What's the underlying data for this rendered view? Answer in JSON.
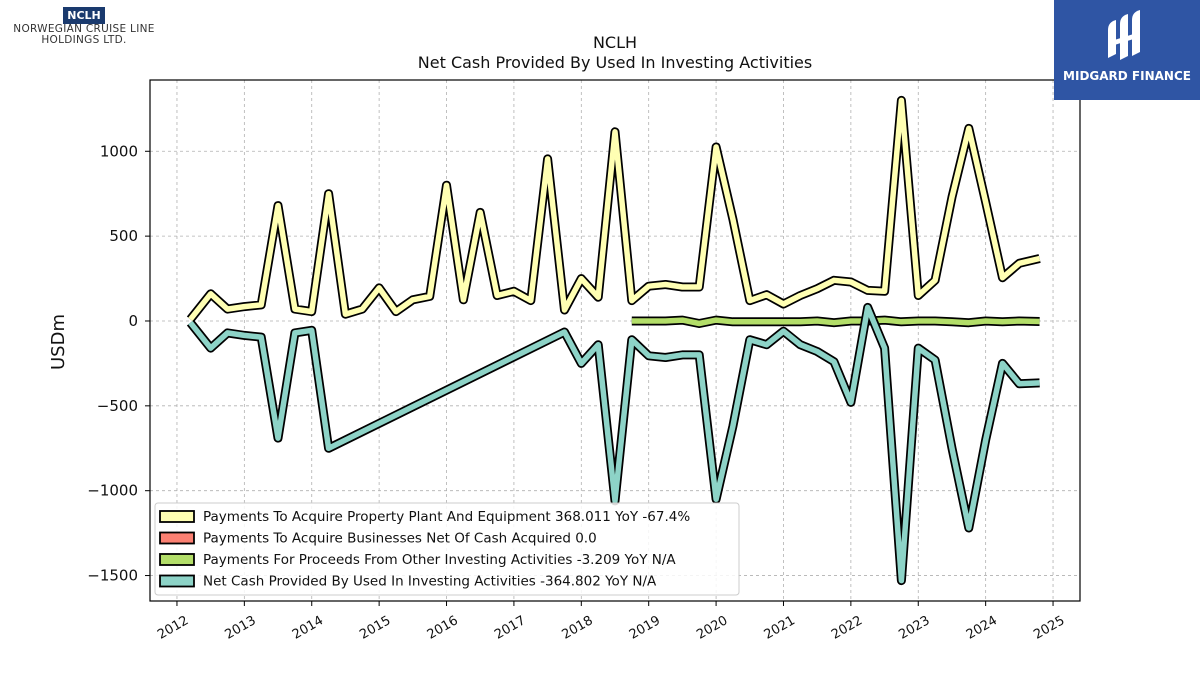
{
  "logos": {
    "company": {
      "badge": "NCLH",
      "line1": "NORWEGIAN CRUISE LINE",
      "line2": "HOLDINGS LTD."
    },
    "publisher": {
      "name": "MIDGARD FINANCE"
    }
  },
  "chart_data": {
    "type": "line",
    "title": "NCLH",
    "subtitle": "Net Cash Provided By Used In Investing Activities",
    "ylabel": "USDm",
    "xlabel": "",
    "xlim": [
      2011.6,
      2025.4
    ],
    "ylim": [
      -1650,
      1420
    ],
    "xticks": [
      2012,
      2013,
      2014,
      2015,
      2016,
      2017,
      2018,
      2019,
      2020,
      2021,
      2022,
      2023,
      2024,
      2025
    ],
    "xtick_labels": [
      "2012",
      "2013",
      "2014",
      "2015",
      "2016",
      "2017",
      "2018",
      "2019",
      "2020",
      "2021",
      "2022",
      "2023",
      "2024",
      "2025"
    ],
    "yticks": [
      1000,
      500,
      0,
      -500,
      -1000,
      -1500
    ],
    "ytick_labels": [
      "1000",
      "500",
      "0",
      "−500",
      "−1000",
      "−1500"
    ],
    "grid": true,
    "legend_position": "lower-left",
    "series": [
      {
        "name": "Payments To Acquire Property Plant And Equipment",
        "legend": "Payments To Acquire Property Plant And Equipment  368.011 YoY -67.4%",
        "color": "#ffffb3",
        "x": [
          2012.2,
          2012.5,
          2012.75,
          2013.0,
          2013.25,
          2013.5,
          2013.75,
          2014.0,
          2014.25,
          2014.5,
          2014.75,
          2015.0,
          2015.25,
          2015.5,
          2015.75,
          2016.0,
          2016.25,
          2016.5,
          2016.75,
          2017.0,
          2017.25,
          2017.5,
          2017.75,
          2018.0,
          2018.25,
          2018.5,
          2018.75,
          2019.0,
          2019.25,
          2019.5,
          2019.75,
          2020.0,
          2020.25,
          2020.5,
          2020.75,
          2021.0,
          2021.25,
          2021.5,
          2021.75,
          2022.0,
          2022.25,
          2022.5,
          2022.75,
          2023.0,
          2023.25,
          2023.5,
          2023.75,
          2024.0,
          2024.25,
          2024.5,
          2024.8
        ],
        "y": [
          10,
          160,
          70,
          85,
          95,
          680,
          70,
          55,
          750,
          40,
          70,
          195,
          55,
          125,
          145,
          800,
          125,
          640,
          150,
          175,
          120,
          955,
          65,
          250,
          140,
          1115,
          120,
          205,
          215,
          200,
          200,
          1025,
          600,
          120,
          155,
          100,
          150,
          190,
          240,
          230,
          180,
          175,
          1300,
          150,
          240,
          730,
          1135,
          700,
          255,
          340,
          368.011
        ]
      },
      {
        "name": "Payments To Acquire Businesses Net Of Cash Acquired",
        "legend": "Payments To Acquire Businesses Net Of Cash Acquired  0.0",
        "color": "#fb8072",
        "x": [],
        "y": []
      },
      {
        "name": "Payments For Proceeds From Other Investing Activities",
        "legend": "Payments For Proceeds From Other Investing Activities  -3.209 YoY N/A",
        "color": "#b3de69",
        "x": [
          2018.75,
          2019.0,
          2019.25,
          2019.5,
          2019.75,
          2020.0,
          2020.25,
          2020.5,
          2020.75,
          2021.0,
          2021.25,
          2021.5,
          2021.75,
          2022.0,
          2022.25,
          2022.5,
          2022.75,
          2023.0,
          2023.25,
          2023.5,
          2023.75,
          2024.0,
          2024.25,
          2024.5,
          2024.8
        ],
        "y": [
          0,
          0,
          0,
          5,
          -15,
          5,
          -5,
          -5,
          -5,
          -5,
          -5,
          0,
          -10,
          0,
          0,
          5,
          -5,
          0,
          0,
          -5,
          -10,
          0,
          -5,
          0,
          -3.209
        ]
      },
      {
        "name": "Net Cash Provided By Used In Investing Activities",
        "legend": "Net Cash Provided By Used In Investing Activities  -364.802 YoY N/A",
        "color": "#8dd3c7",
        "x": [
          2012.2,
          2012.5,
          2012.75,
          2013.0,
          2013.25,
          2013.5,
          2013.75,
          2014.0,
          2014.25,
          2017.75,
          2018.0,
          2018.25,
          2018.5,
          2018.75,
          2019.0,
          2019.25,
          2019.5,
          2019.75,
          2020.0,
          2020.25,
          2020.5,
          2020.75,
          2021.0,
          2021.25,
          2021.5,
          2021.75,
          2022.0,
          2022.25,
          2022.5,
          2022.75,
          2023.0,
          2023.25,
          2023.5,
          2023.75,
          2024.0,
          2024.25,
          2024.5,
          2024.8
        ],
        "y": [
          -10,
          -160,
          -70,
          -85,
          -95,
          -690,
          -70,
          -55,
          -750,
          -65,
          -250,
          -140,
          -1060,
          -110,
          -205,
          -215,
          -200,
          -200,
          -1050,
          -620,
          -110,
          -140,
          -60,
          -140,
          -180,
          -240,
          -480,
          80,
          -160,
          -1530,
          -160,
          -230,
          -750,
          -1220,
          -700,
          -250,
          -370,
          -364.802
        ]
      }
    ]
  }
}
